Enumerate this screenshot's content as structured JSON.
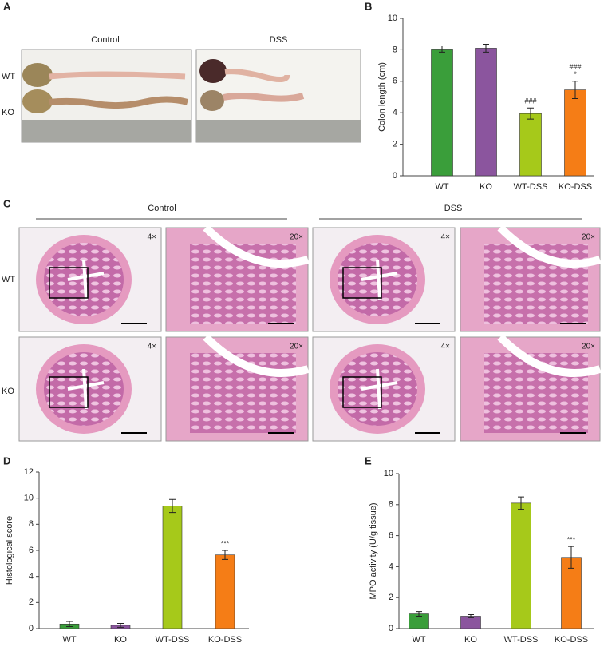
{
  "chart_data": [
    {
      "type": "bar",
      "ylabel": "Colon length (cm)",
      "categories": [
        "WT",
        "KO",
        "WT-DSS",
        "KO-DSS"
      ],
      "values": [
        8.05,
        8.1,
        3.95,
        5.45
      ],
      "errors": [
        0.2,
        0.25,
        0.35,
        0.55
      ],
      "colors": [
        "#3a9e3a",
        "#8b559e",
        "#a6c91a",
        "#f57d16"
      ],
      "ylim": [
        0,
        10
      ],
      "yticks": [
        0,
        2,
        4,
        6,
        8,
        10
      ],
      "annotations": [
        null,
        null,
        [
          "###"
        ],
        [
          "###",
          "*"
        ]
      ]
    },
    {
      "type": "bar",
      "ylabel": "Histological score",
      "categories": [
        "WT",
        "KO",
        "WT-DSS",
        "KO-DSS"
      ],
      "values": [
        0.35,
        0.25,
        9.4,
        5.65
      ],
      "errors": [
        0.2,
        0.15,
        0.5,
        0.35
      ],
      "colors": [
        "#3a9e3a",
        "#8b559e",
        "#a6c91a",
        "#f57d16"
      ],
      "ylim": [
        0,
        12
      ],
      "yticks": [
        0,
        2,
        4,
        6,
        8,
        10,
        12
      ],
      "annotations": [
        null,
        null,
        null,
        [
          "***"
        ]
      ]
    },
    {
      "type": "bar",
      "ylabel": "MPO activity (U/g tissue)",
      "categories": [
        "WT",
        "KO",
        "WT-DSS",
        "KO-DSS"
      ],
      "values": [
        0.95,
        0.8,
        8.1,
        4.6
      ],
      "errors": [
        0.15,
        0.1,
        0.4,
        0.7
      ],
      "colors": [
        "#3a9e3a",
        "#8b559e",
        "#a6c91a",
        "#f57d16"
      ],
      "ylim": [
        0,
        10
      ],
      "yticks": [
        0,
        2,
        4,
        6,
        8,
        10
      ],
      "annotations": [
        null,
        null,
        null,
        [
          "***"
        ]
      ]
    }
  ],
  "figure": {
    "panel_labels": [
      "A",
      "B",
      "C",
      "D",
      "E"
    ],
    "panel_a": {
      "columns": [
        "Control",
        "DSS"
      ],
      "rows": [
        "WT",
        "KO"
      ]
    },
    "panel_c": {
      "columns": [
        "Control",
        "DSS"
      ],
      "rows": [
        "WT",
        "KO"
      ],
      "magnifications": [
        [
          "4×",
          "20×",
          "4×",
          "20×"
        ],
        [
          "4×",
          "20×",
          "4×",
          "20×"
        ]
      ]
    }
  }
}
